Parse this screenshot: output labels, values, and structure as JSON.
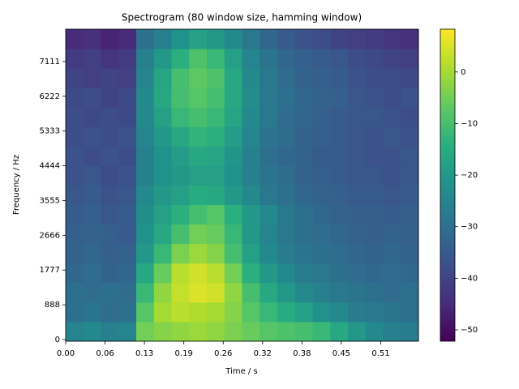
{
  "chart_data": {
    "type": "heatmap",
    "title": "Spectrogram (80 window size, hamming window)",
    "xlabel": "Time / s",
    "ylabel": "Frequency / Hz",
    "colormap": "viridis",
    "xlim": [
      0,
      0.576
    ],
    "xticks": [
      {
        "value": 0,
        "label": "0.00"
      },
      {
        "value": 0.0643,
        "label": "0.06"
      },
      {
        "value": 0.1286,
        "label": "0.13"
      },
      {
        "value": 0.1929,
        "label": "0.19"
      },
      {
        "value": 0.2572,
        "label": "0.26"
      },
      {
        "value": 0.3215,
        "label": "0.32"
      },
      {
        "value": 0.3858,
        "label": "0.38"
      },
      {
        "value": 0.4501,
        "label": "0.45"
      },
      {
        "value": 0.5144,
        "label": "0.51"
      }
    ],
    "ylim": [
      -41,
      7938
    ],
    "yticks": [
      0,
      {
        "value": 888.9,
        "label": "888"
      },
      {
        "value": 1777.8,
        "label": "1777"
      },
      {
        "value": 2666.7,
        "label": "2666"
      },
      {
        "value": 3555.6,
        "label": "3555"
      },
      {
        "value": 4444.4,
        "label": "4444"
      },
      {
        "value": 5333.3,
        "label": "5333"
      },
      {
        "value": 6222.2,
        "label": "6222"
      },
      {
        "value": 7111.1,
        "label": "7111"
      }
    ],
    "clim": [
      -52.2,
      8.3
    ],
    "cticks": [
      0,
      {
        "value": -10,
        "label": "−10"
      },
      {
        "value": -20,
        "label": "−20"
      },
      {
        "value": -30,
        "label": "−30"
      },
      {
        "value": -40,
        "label": "−40"
      },
      {
        "value": -50,
        "label": "−50"
      }
    ],
    "z": [
      [
        -25,
        -24,
        -26,
        -25,
        -5,
        -3,
        -2,
        -1,
        -2,
        -4,
        -6,
        -8,
        -9,
        -10,
        -12,
        -16,
        -20,
        -24,
        -26,
        -27
      ],
      [
        -30,
        -29,
        -31,
        -30,
        -8,
        0,
        2,
        1,
        0,
        -3,
        -8,
        -12,
        -15,
        -18,
        -22,
        -24,
        -27,
        -28,
        -29,
        -30
      ],
      [
        -30,
        -31,
        -30,
        -31,
        -12,
        -2,
        3,
        5,
        4,
        -2,
        -10,
        -16,
        -20,
        -24,
        -26,
        -28,
        -29,
        -30,
        -31,
        -30
      ],
      [
        -32,
        -31,
        -33,
        -32,
        -16,
        -6,
        2,
        4,
        2,
        -5,
        -14,
        -20,
        -24,
        -27,
        -28,
        -30,
        -31,
        -32,
        -31,
        -32
      ],
      [
        -33,
        -32,
        -34,
        -33,
        -20,
        -12,
        -4,
        -1,
        -3,
        -10,
        -18,
        -24,
        -27,
        -29,
        -30,
        -31,
        -32,
        -33,
        -32,
        -33
      ],
      [
        -34,
        -33,
        -34,
        -35,
        -22,
        -16,
        -10,
        -5,
        -6,
        -12,
        -20,
        -25,
        -28,
        -30,
        -31,
        -32,
        -33,
        -34,
        -33,
        -34
      ],
      [
        -35,
        -34,
        -36,
        -35,
        -23,
        -18,
        -14,
        -10,
        -8,
        -14,
        -20,
        -24,
        -28,
        -30,
        -32,
        -33,
        -34,
        -34,
        -35,
        -34
      ],
      [
        -36,
        -35,
        -37,
        -36,
        -24,
        -20,
        -18,
        -15,
        -16,
        -20,
        -24,
        -28,
        -30,
        -32,
        -33,
        -34,
        -35,
        -35,
        -36,
        -35
      ],
      [
        -37,
        -36,
        -38,
        -37,
        -26,
        -22,
        -20,
        -18,
        -18,
        -22,
        -26,
        -29,
        -31,
        -33,
        -34,
        -35,
        -36,
        -36,
        -37,
        -36
      ],
      [
        -37,
        -38,
        -37,
        -38,
        -26,
        -22,
        -19,
        -16,
        -17,
        -21,
        -26,
        -30,
        -32,
        -33,
        -35,
        -35,
        -36,
        -37,
        -37,
        -36
      ],
      [
        -38,
        -37,
        -38,
        -37,
        -25,
        -20,
        -16,
        -13,
        -14,
        -19,
        -25,
        -29,
        -31,
        -33,
        -34,
        -35,
        -36,
        -37,
        -36,
        -37
      ],
      [
        -38,
        -39,
        -38,
        -39,
        -24,
        -18,
        -12,
        -10,
        -12,
        -17,
        -24,
        -28,
        -31,
        -32,
        -34,
        -35,
        -36,
        -36,
        -37,
        -38
      ],
      [
        -39,
        -38,
        -40,
        -39,
        -24,
        -16,
        -10,
        -8,
        -10,
        -16,
        -23,
        -28,
        -30,
        -32,
        -33,
        -34,
        -36,
        -37,
        -38,
        -37
      ],
      [
        -40,
        -41,
        -40,
        -41,
        -25,
        -17,
        -10,
        -7,
        -9,
        -16,
        -24,
        -28,
        -31,
        -33,
        -34,
        -35,
        -37,
        -38,
        -38,
        -39
      ],
      [
        -42,
        -41,
        -43,
        -42,
        -26,
        -20,
        -14,
        -9,
        -12,
        -18,
        -25,
        -29,
        -32,
        -34,
        -35,
        -36,
        -38,
        -39,
        -40,
        -41
      ],
      [
        -45,
        -44,
        -46,
        -45,
        -30,
        -26,
        -22,
        -18,
        -20,
        -24,
        -28,
        -32,
        -35,
        -37,
        -38,
        -40,
        -41,
        -42,
        -43,
        -44
      ]
    ]
  }
}
